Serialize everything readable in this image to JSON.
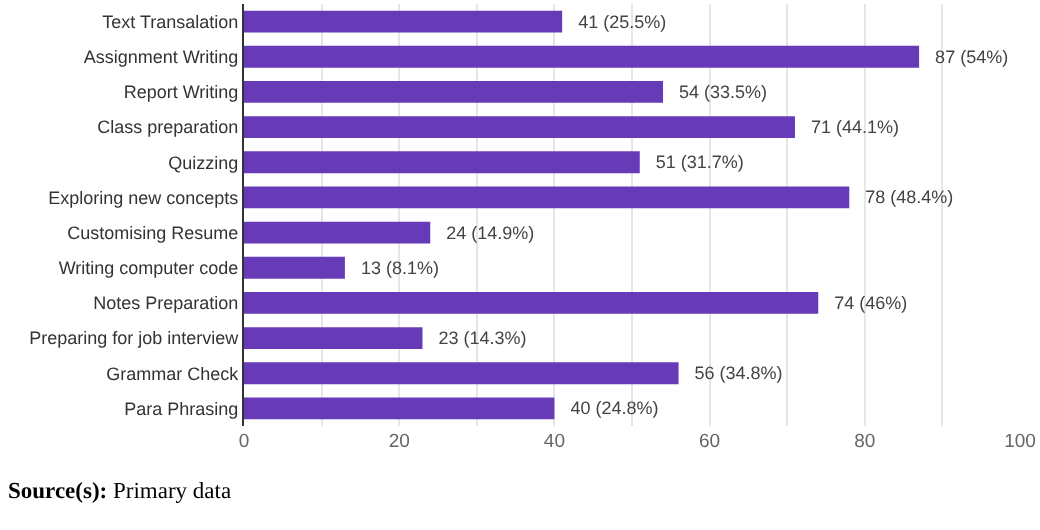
{
  "chart_data": {
    "type": "bar",
    "orientation": "horizontal",
    "categories": [
      "Text Transalation",
      "Assignment Writing",
      "Report Writing",
      "Class preparation",
      "Quizzing",
      "Exploring new concepts",
      "Customising Resume",
      "Writing computer code",
      "Notes Preparation",
      "Preparing for job interview",
      "Grammar Check",
      "Para Phrasing"
    ],
    "values": [
      41,
      87,
      54,
      71,
      51,
      78,
      24,
      13,
      74,
      23,
      56,
      40
    ],
    "value_labels": [
      "41 (25.5%)",
      "87 (54%)",
      "54 (33.5%)",
      "71 (44.1%)",
      "51 (31.7%)",
      "78 (48.4%)",
      "24 (14.9%)",
      "13 (8.1%)",
      "74 (46%)",
      "23 (14.3%)",
      "56 (34.8%)",
      "40 (24.8%)"
    ],
    "color": "#673ab7",
    "xlim": [
      0,
      100
    ],
    "xticks": [
      0,
      {
        "value": 10,
        "label": null
      },
      20,
      {
        "value": 30,
        "label": null
      },
      40,
      {
        "value": 50,
        "label": null
      },
      60,
      {
        "value": 70,
        "label": null
      },
      80,
      {
        "value": 90,
        "label": null
      },
      100
    ],
    "grid": "x",
    "annotations": [
      "Source(s): Primary data"
    ]
  }
}
